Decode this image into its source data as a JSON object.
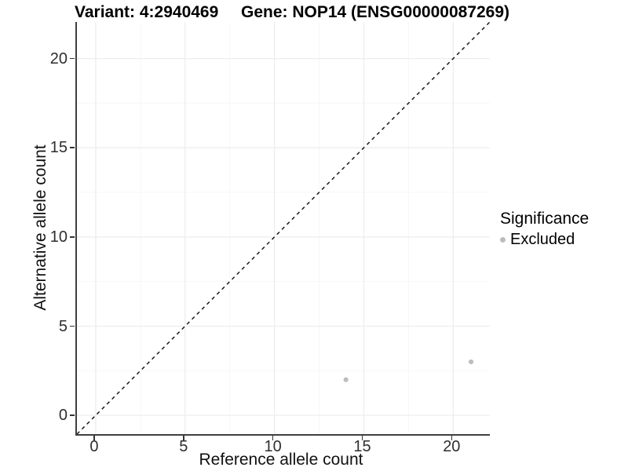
{
  "header": {
    "variant_title": "Variant: 4:2940469",
    "gene_title": "Gene: NOP14 (ENSG00000087269)"
  },
  "legend": {
    "title": "Significance",
    "items": [
      {
        "label": "Excluded",
        "color": "#bdbdbd"
      }
    ]
  },
  "chart_data": {
    "type": "scatter",
    "title": "Variant: 4:2940469   Gene: NOP14 (ENSG00000087269)",
    "xlabel": "Reference allele count",
    "ylabel": "Alternative allele count",
    "xlim": [
      -1.05,
      22.05
    ],
    "ylim": [
      -1.05,
      22.05
    ],
    "x_ticks": [
      0,
      5,
      10,
      15,
      20
    ],
    "y_ticks": [
      0,
      5,
      10,
      15,
      20
    ],
    "x_minor_ticks": [
      2.5,
      7.5,
      12.5,
      17.5
    ],
    "y_minor_ticks": [
      2.5,
      7.5,
      12.5,
      17.5
    ],
    "grid": true,
    "legend_position": "right",
    "series": [
      {
        "name": "Excluded",
        "color": "#bdbdbd",
        "points": [
          {
            "x": 14,
            "y": 2
          },
          {
            "x": 21,
            "y": 3
          }
        ]
      }
    ],
    "reference_line": {
      "type": "identity",
      "style": "dashed",
      "color": "#1a1a1a"
    },
    "colors": {
      "grid_major": "#ededed",
      "grid_minor": "#f7f7f7",
      "axis_line": "#3f3f3f",
      "point": "#bdbdbd"
    }
  }
}
